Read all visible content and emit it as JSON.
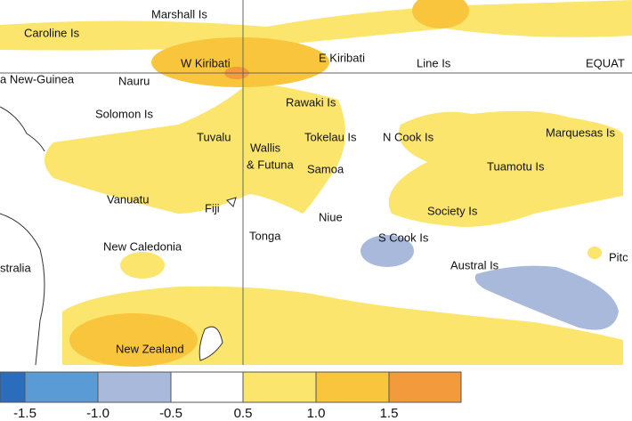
{
  "map": {
    "labels": [
      "Marshall Is",
      "Caroline Is",
      "W Kiribati",
      "E Kiribati",
      "Line Is",
      "EQUAT",
      "a New-Guinea",
      "Nauru",
      "Rawaki Is",
      "Solomon Is",
      "Tuvalu",
      "Wallis",
      "& Futuna",
      "Tokelau Is",
      "N Cook Is",
      "Marquesas Is",
      "Samoa",
      "Tuamotu Is",
      "Vanuatu",
      "Fiji",
      "Niue",
      "Society Is",
      "S Cook Is",
      "Tonga",
      "New Caledonia",
      "Austral Is",
      "Pitc",
      "stralia",
      "New Zealand"
    ],
    "legend": {
      "colors": [
        "#2c6cbd",
        "#5b9bd5",
        "#a9b9dc",
        "#ffffff",
        "#fbe56c",
        "#f9c53c",
        "#f39a3c"
      ],
      "ticks": [
        -1.5,
        {
          "value": -1,
          "label": "-1.0"
        },
        -0.5,
        0.5,
        {
          "value": 1,
          "label": "1.0"
        },
        1.5
      ]
    }
  }
}
